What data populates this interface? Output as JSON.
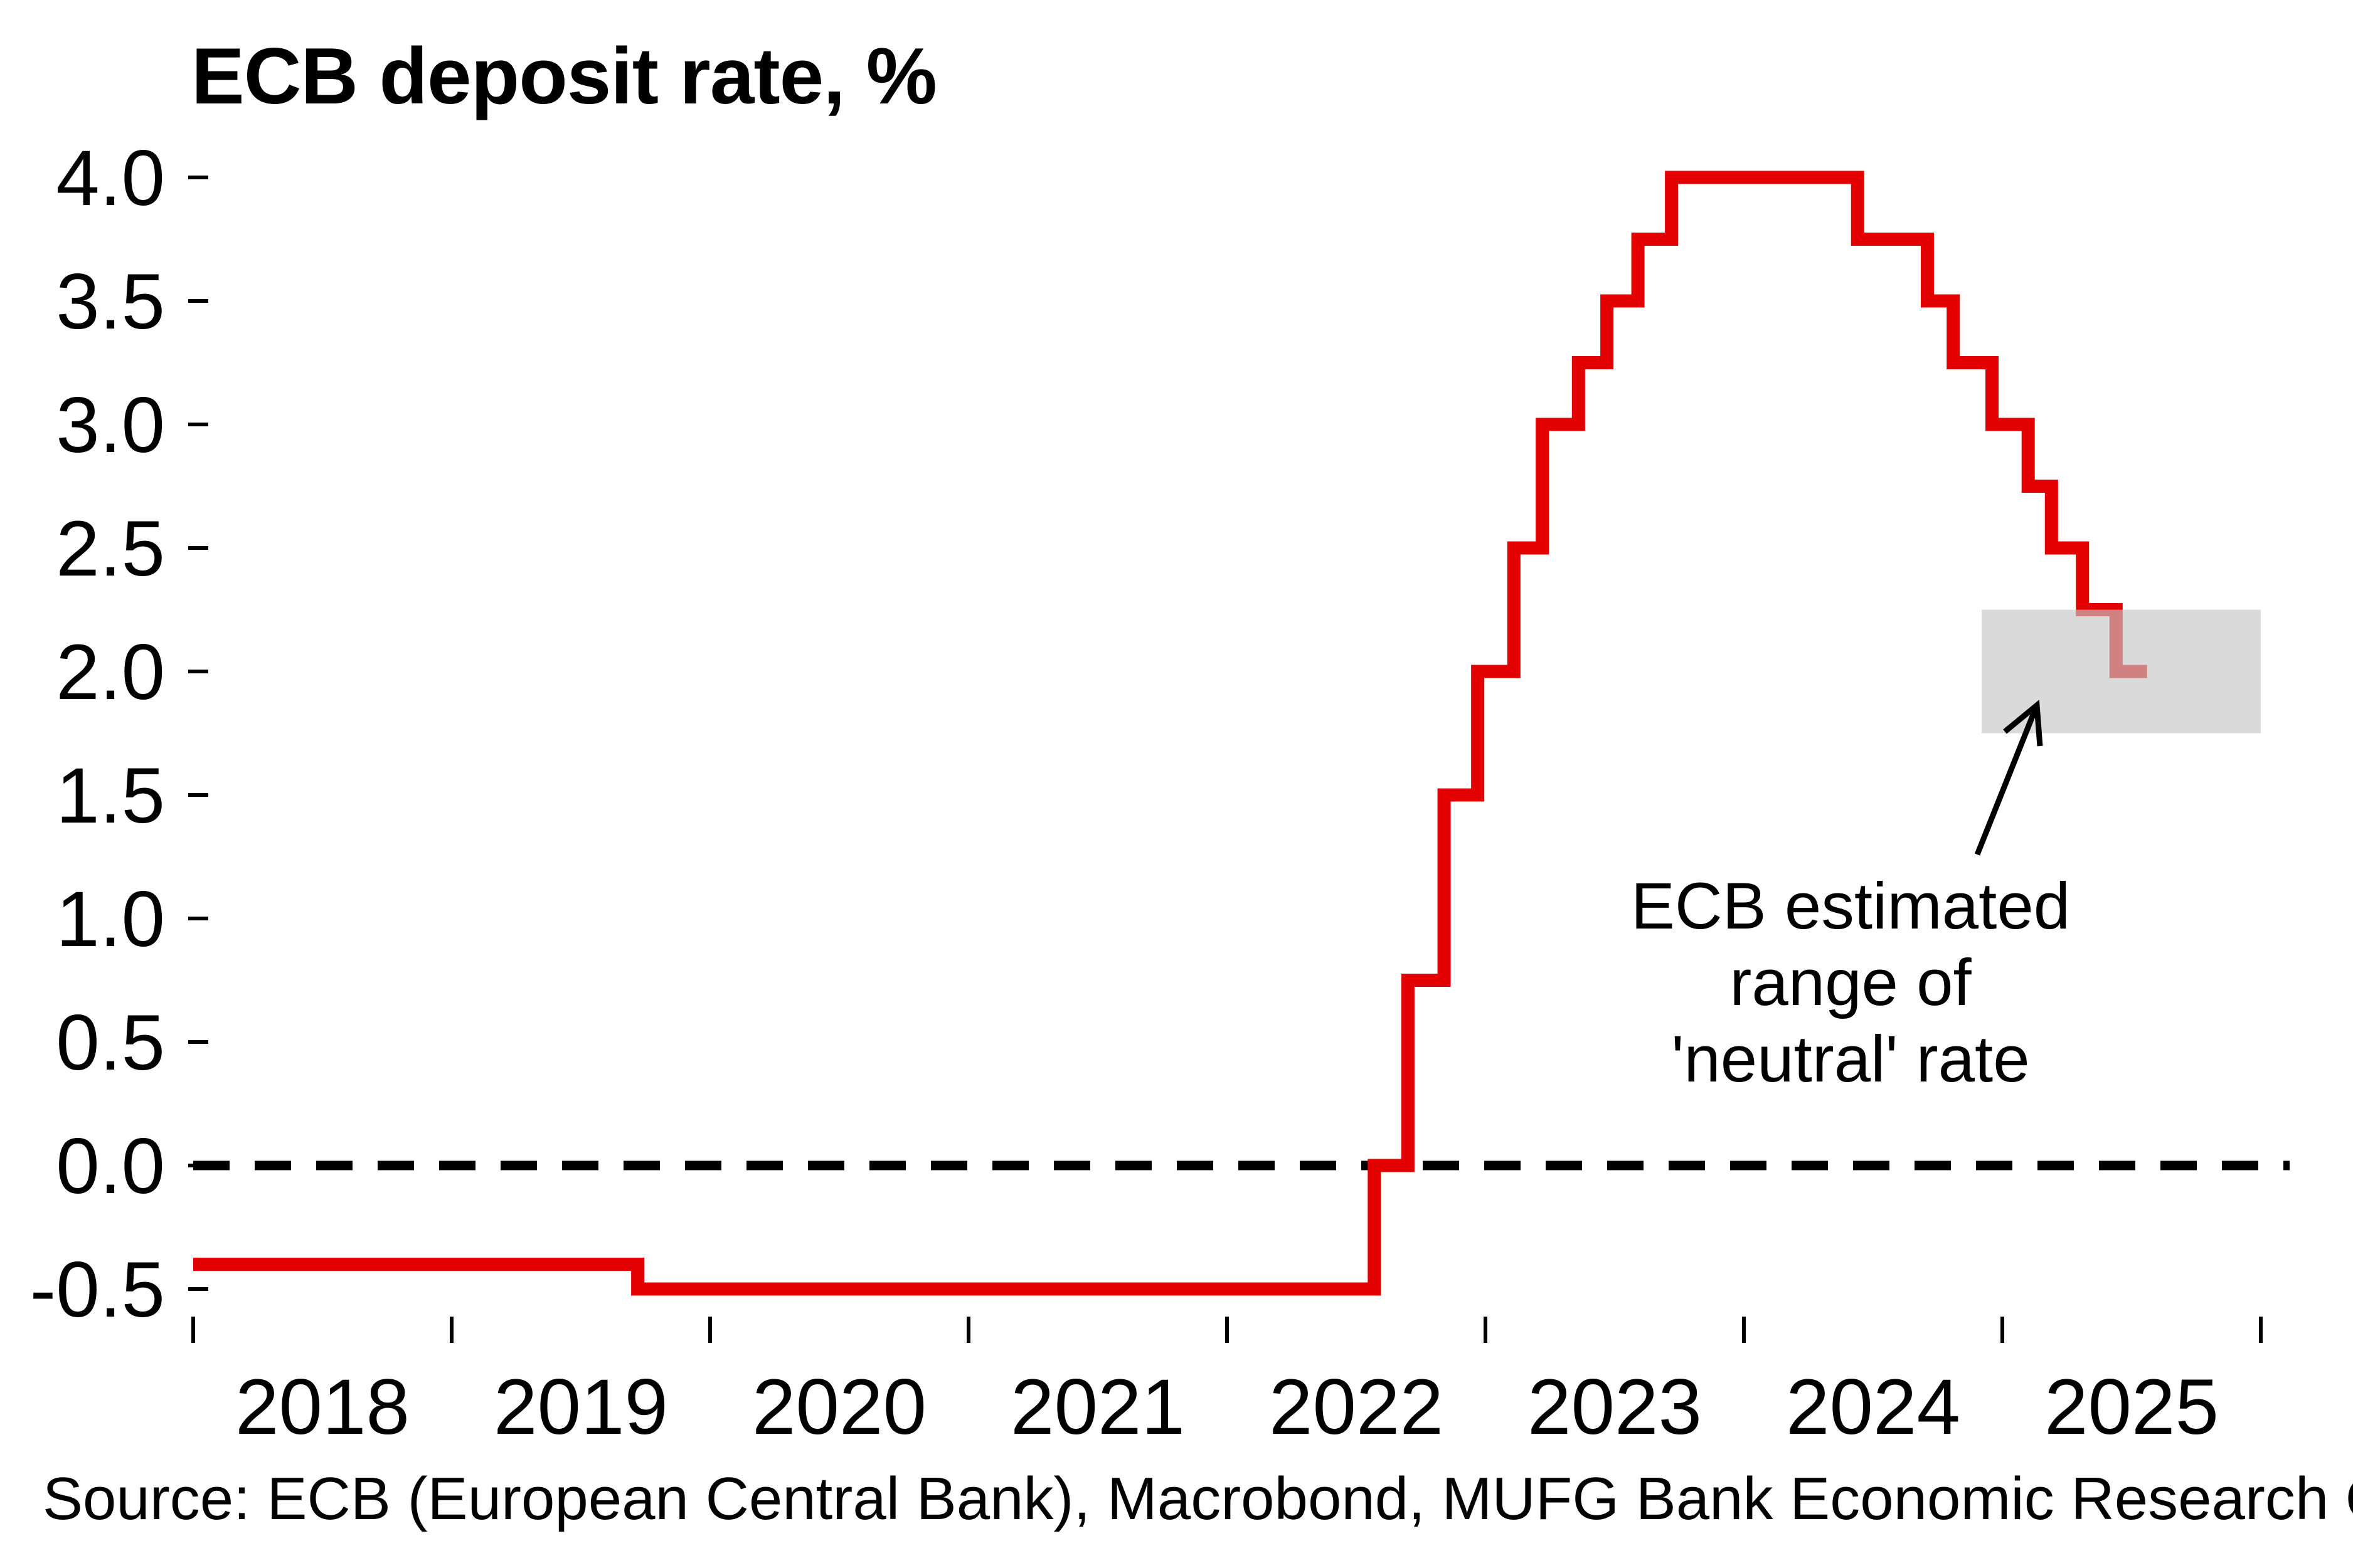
{
  "title": "ECB deposit rate, %",
  "source": "Source: ECB (European Central Bank), Macrobond, MUFG Bank Economic Research Office",
  "annotation": {
    "lines": [
      "ECB estimated",
      "range of",
      "'neutral' rate"
    ]
  },
  "colors": {
    "line": "#e30000",
    "line_in_range_overlay": "#c6c6c6",
    "neutral_box_fill": "#c6c6c6",
    "zero_line": "#000000",
    "text": "#000000"
  },
  "chart_data": {
    "type": "line",
    "subtype": "step",
    "title": "ECB deposit rate, %",
    "xlabel": "",
    "ylabel": "",
    "xlim": [
      2018.0,
      2026.1
    ],
    "ylim": [
      -0.75,
      4.15
    ],
    "grid": false,
    "legend": "none",
    "yticks": [
      {
        "value": 4.0,
        "label": "4.0"
      },
      {
        "value": 3.5,
        "label": "3.5"
      },
      {
        "value": 3.0,
        "label": "3.0"
      },
      {
        "value": 2.5,
        "label": "2.5"
      },
      {
        "value": 2.0,
        "label": "2.0"
      },
      {
        "value": 1.5,
        "label": "1.5"
      },
      {
        "value": 1.0,
        "label": "1.0"
      },
      {
        "value": 0.5,
        "label": "0.5"
      },
      {
        "value": 0.0,
        "label": "0.0"
      },
      {
        "value": -0.5,
        "label": "-0.5"
      }
    ],
    "xticks": [
      2018,
      2019,
      2020,
      2021,
      2022,
      2023,
      2024,
      2025,
      2026
    ],
    "xtick_labels": [
      {
        "center": 2018.5,
        "label": "2018"
      },
      {
        "center": 2019.5,
        "label": "2019"
      },
      {
        "center": 2020.5,
        "label": "2020"
      },
      {
        "center": 2021.5,
        "label": "2021"
      },
      {
        "center": 2022.5,
        "label": "2022"
      },
      {
        "center": 2023.5,
        "label": "2023"
      },
      {
        "center": 2024.5,
        "label": "2024"
      },
      {
        "center": 2025.5,
        "label": "2025"
      }
    ],
    "zero_line": {
      "value": 0.0,
      "style": "dashed",
      "color": "#000000"
    },
    "series": [
      {
        "name": "ECB deposit rate",
        "color": "#e30000",
        "steps": [
          {
            "year": 2018.0,
            "rate": -0.4
          },
          {
            "year": 2019.72,
            "rate": -0.5
          },
          {
            "year": 2022.57,
            "rate": 0.0
          },
          {
            "year": 2022.7,
            "rate": 0.75
          },
          {
            "year": 2022.84,
            "rate": 1.5
          },
          {
            "year": 2022.97,
            "rate": 2.0
          },
          {
            "year": 2023.11,
            "rate": 2.5
          },
          {
            "year": 2023.22,
            "rate": 3.0
          },
          {
            "year": 2023.36,
            "rate": 3.25
          },
          {
            "year": 2023.47,
            "rate": 3.5
          },
          {
            "year": 2023.59,
            "rate": 3.75
          },
          {
            "year": 2023.72,
            "rate": 4.0
          },
          {
            "year": 2024.44,
            "rate": 3.75
          },
          {
            "year": 2024.71,
            "rate": 3.5
          },
          {
            "year": 2024.81,
            "rate": 3.25
          },
          {
            "year": 2024.96,
            "rate": 3.0
          },
          {
            "year": 2025.1,
            "rate": 2.75
          },
          {
            "year": 2025.19,
            "rate": 2.5
          },
          {
            "year": 2025.31,
            "rate": 2.25
          },
          {
            "year": 2025.44,
            "rate": 2.0
          }
        ],
        "end_year": 2025.56
      }
    ],
    "neutral_range": {
      "label": "ECB estimated range of 'neutral' rate",
      "low": 1.75,
      "high": 2.25,
      "from_year": 2024.92,
      "to_year": 2026.0
    }
  }
}
